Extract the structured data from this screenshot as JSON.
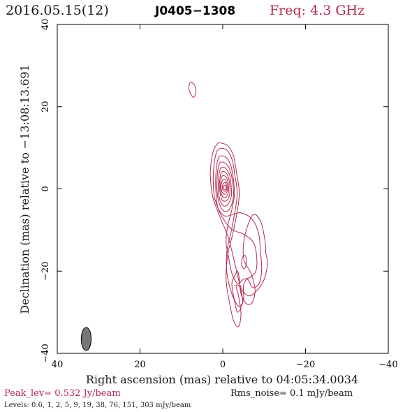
{
  "header": {
    "date": "2016.05.15(12)",
    "source": "J0405−1308",
    "freq": "Freq: 4.3 GHz"
  },
  "footer": {
    "peak": "Peak_lev=  0.532 Jy/beam",
    "rms": "Rms_noise=  0.1 mJy/beam",
    "levels": "Levels: 0.6,   1,   2,   5,   9,  19,  38,  76, 151, 303 mJy/beam"
  },
  "colors": {
    "contour": "#b5294e",
    "beam": "#777777",
    "axes": "#000000"
  },
  "chart_data": {
    "type": "contour",
    "xlabel": "Right ascension (mas) relative to 04:05:34.0034",
    "ylabel": "Declination (mas) relative to −13:08:13.691",
    "xlim": [
      40,
      -40
    ],
    "ylim": [
      -40,
      40
    ],
    "x_ticks": [
      40,
      20,
      0,
      -20,
      -40
    ],
    "y_ticks": [
      -40,
      -20,
      0,
      20,
      40
    ],
    "x_tick_labels": [
      "40",
      "20",
      "0",
      "−20",
      "−40"
    ],
    "y_tick_labels": [
      "−40",
      "−20",
      "0",
      "20",
      "40"
    ],
    "levels_mJy": [
      0.6,
      1,
      2,
      5,
      9,
      19,
      38,
      76,
      151,
      303
    ],
    "beam": {
      "x": 33.0,
      "y": -36.5,
      "major_mas": 5.6,
      "minor_mas": 2.4,
      "pa_deg": 0
    },
    "features": [
      {
        "name": "core",
        "x": -0.5,
        "y": 0.5,
        "peak_Jy_beam": 0.532
      },
      {
        "name": "knot",
        "x": 5.5,
        "y": -17.5
      },
      {
        "name": "isolated",
        "x": 7.0,
        "y": 24.0
      }
    ],
    "contours": [
      {
        "level": 0.6,
        "points": [
          [
            0.8,
            11.2
          ],
          [
            -1.2,
            10.5
          ],
          [
            -2.6,
            8.0
          ],
          [
            -3.4,
            3.5
          ],
          [
            -4.0,
            -1.0
          ],
          [
            -3.4,
            -6.0
          ],
          [
            -2.4,
            -11.0
          ],
          [
            -1.2,
            -16.0
          ],
          [
            -0.8,
            -22.0
          ],
          [
            -1.6,
            -27.5
          ],
          [
            -2.6,
            -32.0
          ],
          [
            -3.8,
            -33.5
          ],
          [
            -4.4,
            -30.5
          ],
          [
            -3.8,
            -26.0
          ],
          [
            -3.2,
            -23.5
          ],
          [
            -4.2,
            -24.0
          ],
          [
            -4.8,
            -27.5
          ],
          [
            -3.6,
            -30.0
          ],
          [
            -2.8,
            -27.0
          ],
          [
            -2.2,
            -23.0
          ],
          [
            -3.0,
            -21.0
          ],
          [
            -3.6,
            -20.0
          ],
          [
            -4.0,
            -22.0
          ],
          [
            -4.4,
            -25.5
          ],
          [
            -5.8,
            -28.0
          ],
          [
            -7.2,
            -27.5
          ],
          [
            -7.8,
            -24.5
          ],
          [
            -6.8,
            -20.5
          ],
          [
            -5.2,
            -17.5
          ],
          [
            -5.0,
            -13.5
          ],
          [
            -6.0,
            -9.0
          ],
          [
            -7.5,
            -6.2
          ],
          [
            -9.2,
            -8.0
          ],
          [
            -10.2,
            -12.5
          ],
          [
            -10.4,
            -15.5
          ],
          [
            -10.8,
            -18.5
          ],
          [
            -9.8,
            -22.5
          ],
          [
            -8.0,
            -25.0
          ],
          [
            -6.2,
            -26.0
          ],
          [
            -4.4,
            -24.0
          ],
          [
            -3.0,
            -18.5
          ],
          [
            -1.4,
            -12.0
          ],
          [
            0.4,
            -7.5
          ],
          [
            2.4,
            -2.0
          ],
          [
            3.0,
            3.0
          ],
          [
            2.8,
            6.5
          ],
          [
            2.2,
            9.5
          ],
          [
            1.4,
            10.8
          ]
        ]
      },
      {
        "level": 1,
        "points": [
          [
            0.8,
            9.8
          ],
          [
            -1.0,
            9.4
          ],
          [
            -2.3,
            7.0
          ],
          [
            -2.9,
            3.5
          ],
          [
            -3.5,
            -1.0
          ],
          [
            -2.9,
            -5.8
          ],
          [
            -2.0,
            -10.5
          ],
          [
            -1.0,
            -15.2
          ],
          [
            -1.0,
            -20.5
          ],
          [
            -2.2,
            -25.5
          ],
          [
            -3.8,
            -28.5
          ],
          [
            -5.0,
            -27.0
          ],
          [
            -5.0,
            -23.5
          ],
          [
            -6.0,
            -22.0
          ],
          [
            -7.2,
            -24.0
          ],
          [
            -8.8,
            -23.0
          ],
          [
            -9.4,
            -19.5
          ],
          [
            -9.1,
            -15.0
          ],
          [
            -8.7,
            -11.0
          ],
          [
            -7.2,
            -7.5
          ],
          [
            -4.2,
            -5.8
          ],
          [
            -0.3,
            -6.5
          ],
          [
            1.9,
            -2.5
          ],
          [
            2.3,
            2.5
          ],
          [
            2.1,
            6.0
          ],
          [
            1.6,
            8.6
          ]
        ]
      },
      {
        "level": 2,
        "points": [
          [
            0.6,
            8.0
          ],
          [
            -0.9,
            7.6
          ],
          [
            -2.0,
            5.5
          ],
          [
            -2.6,
            2.0
          ],
          [
            -2.8,
            -1.5
          ],
          [
            -2.2,
            -5.0
          ],
          [
            -1.2,
            -9.0
          ],
          [
            -0.8,
            -13.0
          ],
          [
            -1.4,
            -16.5
          ],
          [
            -2.2,
            -20.5
          ],
          [
            -3.6,
            -23.0
          ],
          [
            -5.0,
            -22.0
          ],
          [
            -6.6,
            -21.5
          ],
          [
            -8.0,
            -20.0
          ],
          [
            -8.2,
            -16.5
          ],
          [
            -7.4,
            -13.0
          ],
          [
            -5.0,
            -11.0
          ],
          [
            -2.4,
            -10.0
          ],
          [
            -0.6,
            -8.0
          ],
          [
            1.2,
            -4.5
          ],
          [
            1.7,
            0.5
          ],
          [
            1.6,
            4.5
          ],
          [
            1.2,
            7.0
          ]
        ]
      },
      {
        "level": 5,
        "points": [
          [
            0.5,
            6.5
          ],
          [
            -0.7,
            6.2
          ],
          [
            -1.8,
            4.5
          ],
          [
            -2.4,
            1.5
          ],
          [
            -2.6,
            -1.5
          ],
          [
            -2.1,
            -4.0
          ],
          [
            -1.0,
            -5.5
          ],
          [
            0.2,
            -5.0
          ],
          [
            1.0,
            -3.0
          ],
          [
            1.4,
            0.0
          ],
          [
            1.3,
            3.5
          ],
          [
            1.0,
            5.5
          ]
        ]
      },
      {
        "level": 9,
        "points": [
          [
            0.3,
            5.3
          ],
          [
            -0.7,
            5.0
          ],
          [
            -1.6,
            3.5
          ],
          [
            -2.0,
            1.0
          ],
          [
            -2.1,
            -1.5
          ],
          [
            -1.6,
            -3.2
          ],
          [
            -0.6,
            -4.2
          ],
          [
            0.3,
            -3.6
          ],
          [
            0.9,
            -1.8
          ],
          [
            1.1,
            0.5
          ],
          [
            1.0,
            2.8
          ],
          [
            0.7,
            4.5
          ]
        ]
      },
      {
        "level": 19,
        "points": [
          [
            0.1,
            4.2
          ],
          [
            -0.7,
            4.0
          ],
          [
            -1.4,
            2.6
          ],
          [
            -1.7,
            0.8
          ],
          [
            -1.7,
            -1.0
          ],
          [
            -1.3,
            -2.4
          ],
          [
            -0.6,
            -3.0
          ],
          [
            0.2,
            -2.6
          ],
          [
            0.6,
            -1.2
          ],
          [
            0.8,
            0.5
          ],
          [
            0.7,
            2.3
          ],
          [
            0.5,
            3.6
          ]
        ]
      },
      {
        "level": 38,
        "points": [
          [
            0.0,
            3.2
          ],
          [
            -0.7,
            3.0
          ],
          [
            -1.2,
            2.0
          ],
          [
            -1.4,
            0.6
          ],
          [
            -1.4,
            -0.6
          ],
          [
            -1.1,
            -1.6
          ],
          [
            -0.5,
            -2.1
          ],
          [
            0.1,
            -1.8
          ],
          [
            0.4,
            -0.9
          ],
          [
            0.6,
            0.4
          ],
          [
            0.5,
            1.7
          ],
          [
            0.3,
            2.8
          ]
        ]
      },
      {
        "level": 76,
        "points": [
          [
            -0.1,
            2.3
          ],
          [
            -0.6,
            2.2
          ],
          [
            -1.0,
            1.5
          ],
          [
            -1.2,
            0.5
          ],
          [
            -1.1,
            -0.4
          ],
          [
            -0.8,
            -1.1
          ],
          [
            -0.4,
            -1.3
          ],
          [
            0.0,
            -1.0
          ],
          [
            0.3,
            -0.4
          ],
          [
            0.4,
            0.5
          ],
          [
            0.3,
            1.4
          ],
          [
            0.1,
            2.0
          ]
        ]
      },
      {
        "level": 151,
        "points": [
          [
            -0.3,
            1.5
          ],
          [
            -0.7,
            1.4
          ],
          [
            -0.9,
            0.8
          ],
          [
            -1.0,
            0.2
          ],
          [
            -0.9,
            -0.3
          ],
          [
            -0.6,
            -0.6
          ],
          [
            -0.3,
            -0.5
          ],
          [
            0.0,
            -0.2
          ],
          [
            0.1,
            0.4
          ],
          [
            0.0,
            1.0
          ]
        ]
      },
      {
        "level": 303,
        "points": [
          [
            -0.4,
            0.9
          ],
          [
            -0.7,
            0.7
          ],
          [
            -0.8,
            0.3
          ],
          [
            -0.7,
            -0.1
          ],
          [
            -0.4,
            -0.2
          ],
          [
            -0.2,
            0.1
          ],
          [
            -0.2,
            0.5
          ]
        ]
      },
      {
        "level": 0.6,
        "points": [
          [
            7.8,
            25.9
          ],
          [
            6.8,
            25.2
          ],
          [
            6.5,
            23.6
          ],
          [
            7.0,
            22.3
          ],
          [
            7.6,
            22.8
          ],
          [
            8.2,
            24.4
          ]
        ]
      },
      {
        "level": 1,
        "points": [
          [
            -5.4,
            -16.2
          ],
          [
            -5.8,
            -17.8
          ],
          [
            -5.2,
            -19.4
          ],
          [
            -4.6,
            -18.6
          ],
          [
            -4.7,
            -16.8
          ]
        ]
      }
    ]
  }
}
